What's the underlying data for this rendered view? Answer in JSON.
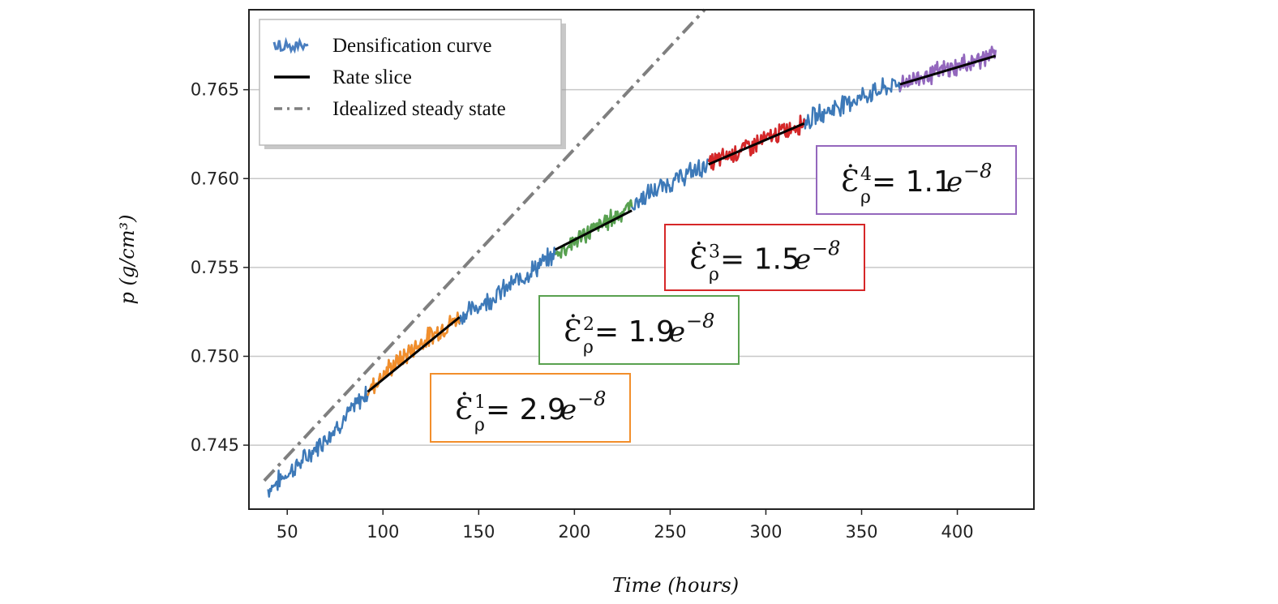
{
  "chart_data": {
    "type": "line",
    "title": "",
    "xlabel": "Time (hours)",
    "ylabel": "p (g/cm³)",
    "xlim": [
      30,
      440
    ],
    "ylim": [
      0.7414,
      0.7695
    ],
    "x_ticks": [
      50,
      100,
      150,
      200,
      250,
      300,
      350,
      400
    ],
    "x_tick_labels": [
      "50",
      "100",
      "150",
      "200",
      "250",
      "300",
      "350",
      "400"
    ],
    "y_ticks": [
      0.745,
      0.75,
      0.755,
      0.76,
      0.765
    ],
    "y_tick_labels": [
      "0.745",
      "0.750",
      "0.755",
      "0.760",
      "0.765"
    ],
    "grid": "horizontal",
    "legend_position": "top-left",
    "legend": [
      {
        "label": "Densification curve",
        "style": "noisy-line",
        "color": "#4a7ebf"
      },
      {
        "label": "Rate slice",
        "style": "solid",
        "color": "#000000"
      },
      {
        "label": "Idealized steady state",
        "style": "dash-dot",
        "color": "#7f7f7f"
      }
    ],
    "series": [
      {
        "name": "Densification curve",
        "color": "#3d79b8",
        "x": [
          40,
          60,
          80,
          100,
          120,
          140,
          160,
          180,
          200,
          220,
          240,
          260,
          280,
          300,
          320,
          340,
          360,
          380,
          400,
          420
        ],
        "y": [
          0.7425,
          0.7443,
          0.7465,
          0.749,
          0.7508,
          0.7522,
          0.7535,
          0.755,
          0.7565,
          0.7578,
          0.7592,
          0.7603,
          0.7613,
          0.7622,
          0.7632,
          0.7642,
          0.765,
          0.7657,
          0.7663,
          0.767
        ]
      }
    ],
    "slices": [
      {
        "x_start": 92,
        "x_end": 140,
        "color": "#f28e2b",
        "line_start": 0.748,
        "line_end": 0.7522
      },
      {
        "x_start": 190,
        "x_end": 230,
        "color": "#59a14f",
        "line_start": 0.756,
        "line_end": 0.7582
      },
      {
        "x_start": 270,
        "x_end": 320,
        "color": "#d62728",
        "line_start": 0.7608,
        "line_end": 0.7631
      },
      {
        "x_start": 370,
        "x_end": 420,
        "color": "#9467bd",
        "line_start": 0.7653,
        "line_end": 0.7669
      }
    ],
    "steady_state_line": {
      "x": [
        38,
        268
      ],
      "y": [
        0.743,
        0.7695
      ],
      "color": "#7f7f7f",
      "style": "dash-dot"
    },
    "annotations": [
      {
        "symbol": "Ɛ̇",
        "sub": "ρ",
        "sup": "1",
        "text": "= 2.9",
        "base": "e",
        "exp": "−8",
        "color": "#f28e2b"
      },
      {
        "symbol": "Ɛ̇",
        "sub": "ρ",
        "sup": "2",
        "text": "= 1.9",
        "base": "e",
        "exp": "−8",
        "color": "#59a14f"
      },
      {
        "symbol": "Ɛ̇",
        "sub": "ρ",
        "sup": "3",
        "text": "= 1.5",
        "base": "e",
        "exp": "−8",
        "color": "#d62728"
      },
      {
        "symbol": "Ɛ̇",
        "sub": "ρ",
        "sup": "4",
        "text": "= 1.1",
        "base": "e",
        "exp": "−8",
        "color": "#9467bd"
      }
    ]
  }
}
